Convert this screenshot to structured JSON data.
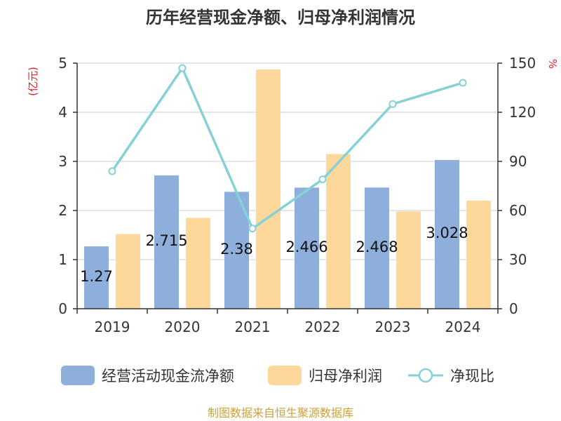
{
  "chart_data": {
    "type": "bar",
    "title": "历年经营现金净额、归母净利润情况",
    "categories": [
      "2019",
      "2020",
      "2021",
      "2022",
      "2023",
      "2024"
    ],
    "series": [
      {
        "name": "经营活动现金流净额",
        "type": "bar",
        "axis": "left",
        "color": "#8eaedb",
        "values": [
          1.27,
          2.715,
          2.38,
          2.466,
          2.468,
          3.028
        ],
        "labels": [
          "1.27",
          "2.715",
          "2.38",
          "2.466",
          "2.468",
          "3.028"
        ]
      },
      {
        "name": "归母净利润",
        "type": "bar",
        "axis": "left",
        "color": "#fdd89a",
        "values": [
          1.52,
          1.85,
          4.87,
          3.15,
          1.98,
          2.2
        ]
      },
      {
        "name": "净现比",
        "type": "line",
        "axis": "right",
        "color": "#85d1d6",
        "values": [
          84,
          147,
          49,
          79,
          125,
          138
        ]
      }
    ],
    "y_left": {
      "unit": "(亿元)",
      "ylim": [
        0,
        5
      ],
      "ticks": [
        "0",
        "1",
        "2",
        "3",
        "4",
        "5"
      ]
    },
    "y_right": {
      "unit": "%",
      "ylim": [
        0,
        150
      ],
      "ticks": [
        "0",
        "30",
        "60",
        "90",
        "120",
        "150"
      ]
    },
    "grid": true,
    "legend_position": "bottom"
  },
  "source_text": "制图数据来自恒生聚源数据库"
}
